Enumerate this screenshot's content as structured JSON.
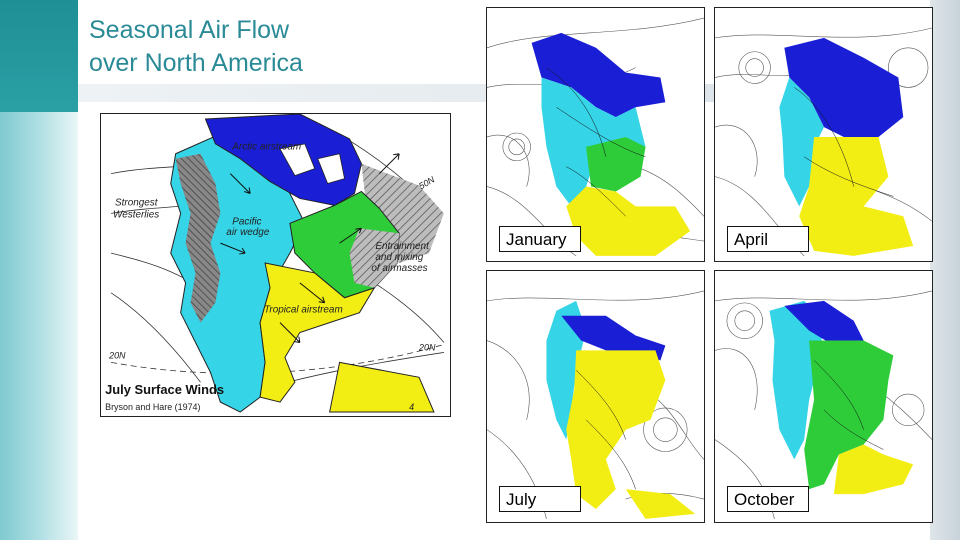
{
  "slide": {
    "title": "Seasonal Air Flow\nover North America"
  },
  "july_map": {
    "heading": "July Surface Winds",
    "credit": "Bryson and Hare (1974)",
    "labels": {
      "arctic": "Arctic airstream",
      "westerlies": "Strongest\nWesterlies",
      "pacific": "Pacific\nair wedge",
      "entrainment": "Entrainment\nand mixing\nof airmasses",
      "tropical": "Tropical airstream",
      "lat50": "50N",
      "lat20_left": "20N",
      "lat20_right": "20N",
      "deg40": "4"
    }
  },
  "monthly_maps": [
    {
      "label": "January"
    },
    {
      "label": "April"
    },
    {
      "label": "July"
    },
    {
      "label": "October"
    }
  ],
  "colors": {
    "title": "#2a8a96",
    "arctic": "#1a1fd6",
    "pacific": "#35d4e6",
    "mixing": "#2fcc3a",
    "tropical": "#f2ee14"
  }
}
